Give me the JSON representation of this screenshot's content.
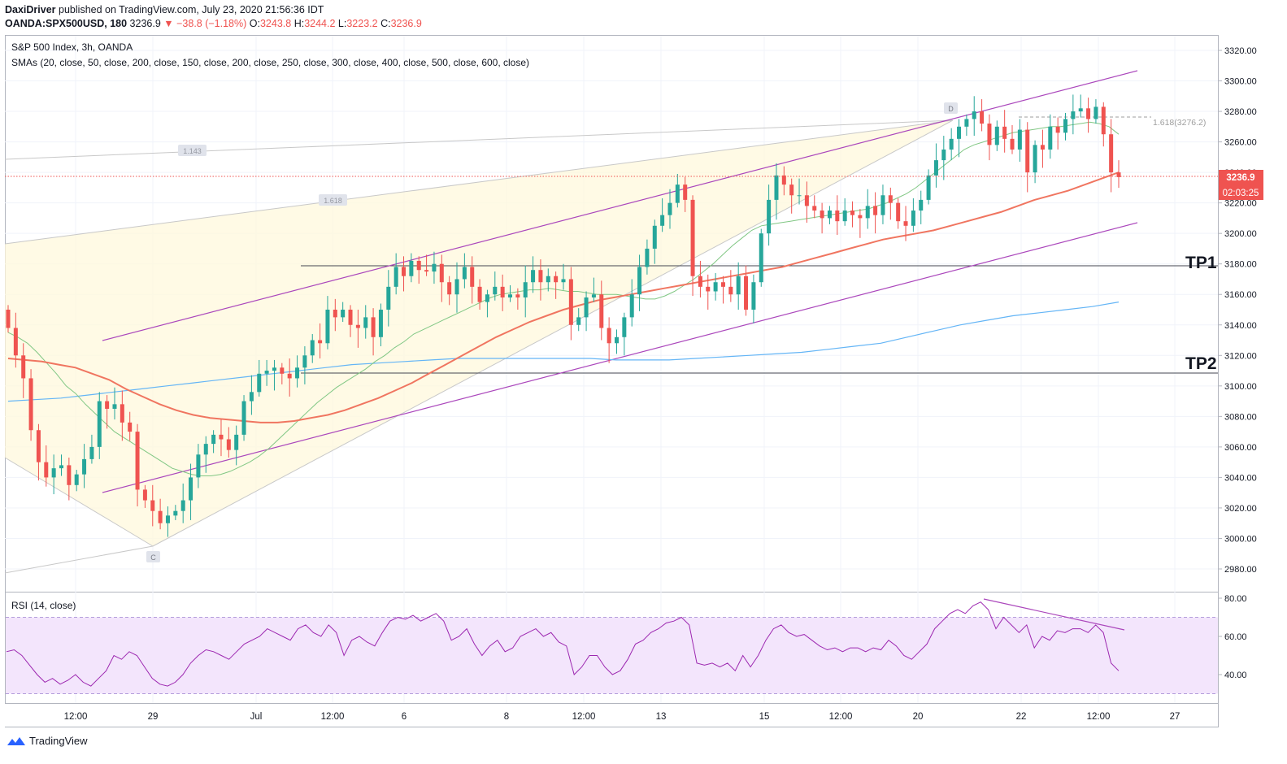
{
  "header": {
    "author": "DaxiDriver",
    "published": "published on TradingView.com, July 23, 2020 21:56:36 IDT",
    "symbol": "OANDA:SPX500USD, 180",
    "last": "3236.9",
    "change": "▼ −38.8 (−1.18%)",
    "o_label": "O:",
    "o": "3243.8",
    "h_label": "H:",
    "h": "3244.2",
    "l_label": "L:",
    "l": "3223.2",
    "c_label": "C:",
    "c": "3236.9"
  },
  "legend": {
    "title": "S&P 500 Index, 3h, OANDA",
    "smas": "SMAs (20, close, 50, close, 200, close, 150, close, 200, close, 250, close, 300, close, 400, close, 500, close, 600, close)",
    "rsi": "RSI (14, close)"
  },
  "annotations": {
    "tp1": "TP1",
    "tp2": "TP2",
    "point_c": "C",
    "point_d": "D",
    "fib_1143": "1.143",
    "fib_1618": "1.618",
    "fib_target": "1.618(3276.2)"
  },
  "price_badge": {
    "value": "3236.9",
    "countdown": "02:03:25"
  },
  "footer": {
    "brand": "TradingView"
  },
  "colors": {
    "up": "#26a69a",
    "down": "#ef5350",
    "sma20": "#81c784",
    "sma50": "#f07560",
    "sma200": "#64b5f6",
    "channel": "#ab47bc",
    "rsi": "#9c27b0",
    "rsi_band": "#f3e5fc"
  },
  "chart_data": [
    {
      "type": "candlestick",
      "title": "S&P 500 Index, 3h, OANDA",
      "ylim": [
        2970,
        3330
      ],
      "y_ticks": [
        2980,
        3000,
        3020,
        3040,
        3060,
        3080,
        3100,
        3120,
        3140,
        3160,
        3180,
        3200,
        3220,
        3240,
        3260,
        3280,
        3300,
        3320
      ],
      "x_ticks": [
        "12:00",
        "29",
        "Jul",
        "12:00",
        "6",
        "8",
        "12:00",
        "13",
        "15",
        "12:00",
        "20",
        "22",
        "12:00",
        "27"
      ],
      "horizontal_levels": [
        {
          "name": "TP1",
          "value": 3179
        },
        {
          "name": "TP2",
          "value": 3108
        }
      ],
      "close_series": [
        3138,
        3120,
        3105,
        3071,
        3050,
        3040,
        3046,
        3048,
        3035,
        3042,
        3052,
        3060,
        3090,
        3085,
        3088,
        3076,
        3070,
        3032,
        3025,
        3018,
        3010,
        3015,
        3018,
        3025,
        3040,
        3055,
        3062,
        3068,
        3065,
        3058,
        3068,
        3090,
        3096,
        3108,
        3110,
        3112,
        3108,
        3105,
        3112,
        3120,
        3130,
        3128,
        3150,
        3145,
        3150,
        3140,
        3138,
        3145,
        3132,
        3150,
        3165,
        3178,
        3172,
        3182,
        3176,
        3175,
        3180,
        3168,
        3160,
        3170,
        3178,
        3165,
        3155,
        3160,
        3165,
        3158,
        3160,
        3158,
        3168,
        3176,
        3168,
        3172,
        3168,
        3170,
        3140,
        3145,
        3158,
        3160,
        3138,
        3128,
        3132,
        3145,
        3160,
        3178,
        3190,
        3205,
        3212,
        3220,
        3232,
        3222,
        3172,
        3165,
        3162,
        3168,
        3165,
        3160,
        3172,
        3150,
        3168,
        3200,
        3222,
        3238,
        3232,
        3225,
        3225,
        3218,
        3215,
        3210,
        3215,
        3208,
        3215,
        3212,
        3210,
        3218,
        3212,
        3225,
        3220,
        3208,
        3205,
        3215,
        3222,
        3238,
        3248,
        3255,
        3262,
        3270,
        3275,
        3280,
        3272,
        3258,
        3270,
        3262,
        3255,
        3268,
        3240,
        3258,
        3255,
        3270,
        3266,
        3275,
        3280,
        3282,
        3275,
        3283,
        3265,
        3240,
        3236.9
      ],
      "sma20": [
        3135,
        3132,
        3128,
        3122,
        3115,
        3108,
        3100,
        3095,
        3088,
        3082,
        3076,
        3070,
        3066,
        3062,
        3058,
        3054,
        3050,
        3046,
        3044,
        3042,
        3041,
        3041,
        3042,
        3044,
        3047,
        3050,
        3054,
        3059,
        3065,
        3071,
        3077,
        3083,
        3089,
        3094,
        3099,
        3103,
        3107,
        3111,
        3116,
        3120,
        3125,
        3129,
        3134,
        3137,
        3140,
        3143,
        3146,
        3149,
        3152,
        3155,
        3158,
        3160,
        3161,
        3162,
        3163,
        3163,
        3164,
        3163,
        3162,
        3162,
        3161,
        3160,
        3160,
        3160,
        3159,
        3158,
        3157,
        3157,
        3159,
        3162,
        3166,
        3170,
        3175,
        3180,
        3186,
        3192,
        3197,
        3202,
        3205,
        3206,
        3207,
        3208,
        3209,
        3210,
        3211,
        3212,
        3213,
        3214,
        3215,
        3216,
        3218,
        3220,
        3223,
        3226,
        3230,
        3235,
        3240,
        3245,
        3250,
        3255,
        3258,
        3260,
        3262,
        3264,
        3266,
        3267,
        3268,
        3269,
        3270,
        3270,
        3271,
        3272,
        3273,
        3272,
        3270,
        3265
      ],
      "sma50": [
        3118,
        3117,
        3116,
        3114,
        3112,
        3108,
        3104,
        3098,
        3093,
        3088,
        3084,
        3081,
        3079,
        3078,
        3077,
        3076,
        3076,
        3077,
        3079,
        3081,
        3084,
        3088,
        3092,
        3097,
        3102,
        3108,
        3114,
        3120,
        3126,
        3132,
        3137,
        3142,
        3146,
        3150,
        3153,
        3156,
        3158,
        3160,
        3162,
        3164,
        3166,
        3168,
        3170,
        3172,
        3174,
        3176,
        3178,
        3181,
        3184,
        3187,
        3190,
        3193,
        3196,
        3198,
        3200,
        3202,
        3205,
        3208,
        3211,
        3214,
        3218,
        3222,
        3225,
        3228,
        3232,
        3236,
        3240
      ],
      "sma200": [
        3090,
        3091,
        3092,
        3094,
        3096,
        3098,
        3100,
        3102,
        3104,
        3106,
        3108,
        3110,
        3112,
        3114,
        3115,
        3116,
        3117,
        3118,
        3118,
        3118,
        3118,
        3118,
        3118,
        3117,
        3117,
        3117,
        3118,
        3119,
        3120,
        3121,
        3122,
        3124,
        3126,
        3128,
        3132,
        3136,
        3140,
        3143,
        3146,
        3148,
        3150,
        3152,
        3155
      ],
      "ascending_channel": {
        "upper": [
          [
            0,
            3140
          ],
          [
            1,
            3305
          ]
        ],
        "lower": [
          [
            0,
            3030
          ],
          [
            1,
            3207
          ]
        ]
      }
    },
    {
      "type": "line",
      "title": "RSI (14, close)",
      "ylim": [
        28,
        82
      ],
      "y_ticks": [
        40,
        60,
        80
      ],
      "bands": [
        30,
        70
      ],
      "values": [
        52,
        53,
        50,
        45,
        40,
        36,
        38,
        35,
        37,
        40,
        36,
        34,
        38,
        42,
        50,
        48,
        52,
        50,
        44,
        38,
        35,
        34,
        36,
        40,
        46,
        50,
        53,
        52,
        50,
        48,
        52,
        56,
        58,
        60,
        64,
        62,
        60,
        58,
        64,
        66,
        62,
        60,
        66,
        62,
        50,
        58,
        60,
        57,
        55,
        62,
        68,
        70,
        69,
        71,
        68,
        70,
        72,
        68,
        58,
        60,
        64,
        56,
        50,
        55,
        58,
        52,
        54,
        60,
        62,
        64,
        60,
        62,
        57,
        55,
        40,
        44,
        50,
        50,
        44,
        40,
        42,
        48,
        56,
        58,
        62,
        64,
        67,
        68,
        70,
        66,
        46,
        45,
        46,
        44,
        46,
        42,
        50,
        44,
        50,
        58,
        64,
        66,
        62,
        60,
        61,
        58,
        55,
        53,
        54,
        52,
        54,
        54,
        52,
        54,
        53,
        58,
        55,
        50,
        48,
        52,
        56,
        64,
        68,
        72,
        74,
        72,
        76,
        78,
        74,
        64,
        70,
        66,
        62,
        66,
        54,
        60,
        58,
        63,
        62,
        64,
        64,
        62,
        66,
        62,
        46,
        42
      ]
    }
  ]
}
